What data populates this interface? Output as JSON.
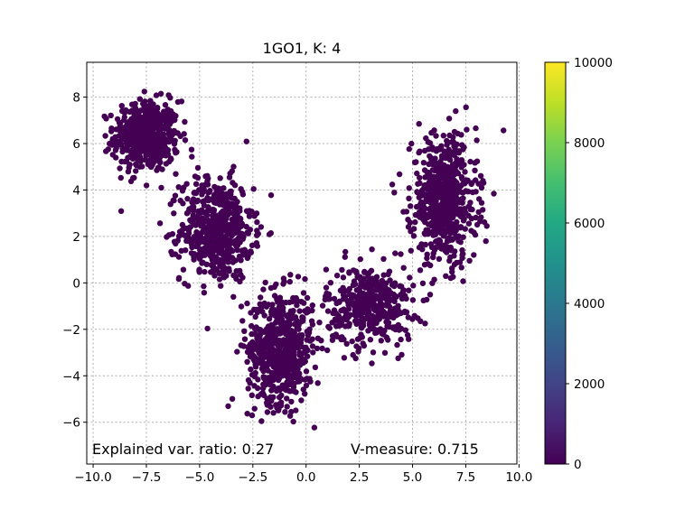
{
  "chart_data": {
    "type": "scatter",
    "title": "1GO1, K: 4",
    "xlabel": "",
    "ylabel": "",
    "xlim": [
      -10.3,
      9.9
    ],
    "ylim": [
      -7.8,
      9.5
    ],
    "xticks": [
      -10.0,
      -7.5,
      -5.0,
      -2.5,
      0.0,
      2.5,
      5.0,
      7.5,
      10.0
    ],
    "xtick_labels": [
      "−10.0",
      "−7.5",
      "−5.0",
      "−2.5",
      "0.0",
      "2.5",
      "5.0",
      "7.5",
      "10.0"
    ],
    "yticks": [
      -6,
      -4,
      -2,
      0,
      2,
      4,
      6,
      8
    ],
    "ytick_labels": [
      "−6",
      "−4",
      "−2",
      "0",
      "2",
      "4",
      "6",
      "8"
    ],
    "grid": true,
    "point_color": "#440154",
    "clusters": [
      {
        "center": [
          -7.5,
          6.3
        ],
        "spread": [
          0.9,
          0.9
        ],
        "count": 520
      },
      {
        "center": [
          -4.2,
          2.3
        ],
        "spread": [
          1.0,
          1.3
        ],
        "count": 560
      },
      {
        "center": [
          -1.2,
          -2.8
        ],
        "spread": [
          0.9,
          1.4
        ],
        "count": 620
      },
      {
        "center": [
          3.0,
          -1.0
        ],
        "spread": [
          1.2,
          1.0
        ],
        "count": 420
      },
      {
        "center": [
          6.5,
          3.6
        ],
        "spread": [
          0.9,
          1.6
        ],
        "count": 620
      }
    ],
    "annotations": {
      "explained_var": "Explained var. ratio: 0.27",
      "v_measure": "V-measure: 0.715"
    },
    "colorbar": {
      "colormap": "viridis",
      "range": [
        0,
        10000
      ],
      "ticks": [
        0,
        2000,
        4000,
        6000,
        8000,
        10000
      ],
      "tick_labels": [
        "0",
        "2000",
        "4000",
        "6000",
        "8000",
        "10000"
      ]
    }
  }
}
